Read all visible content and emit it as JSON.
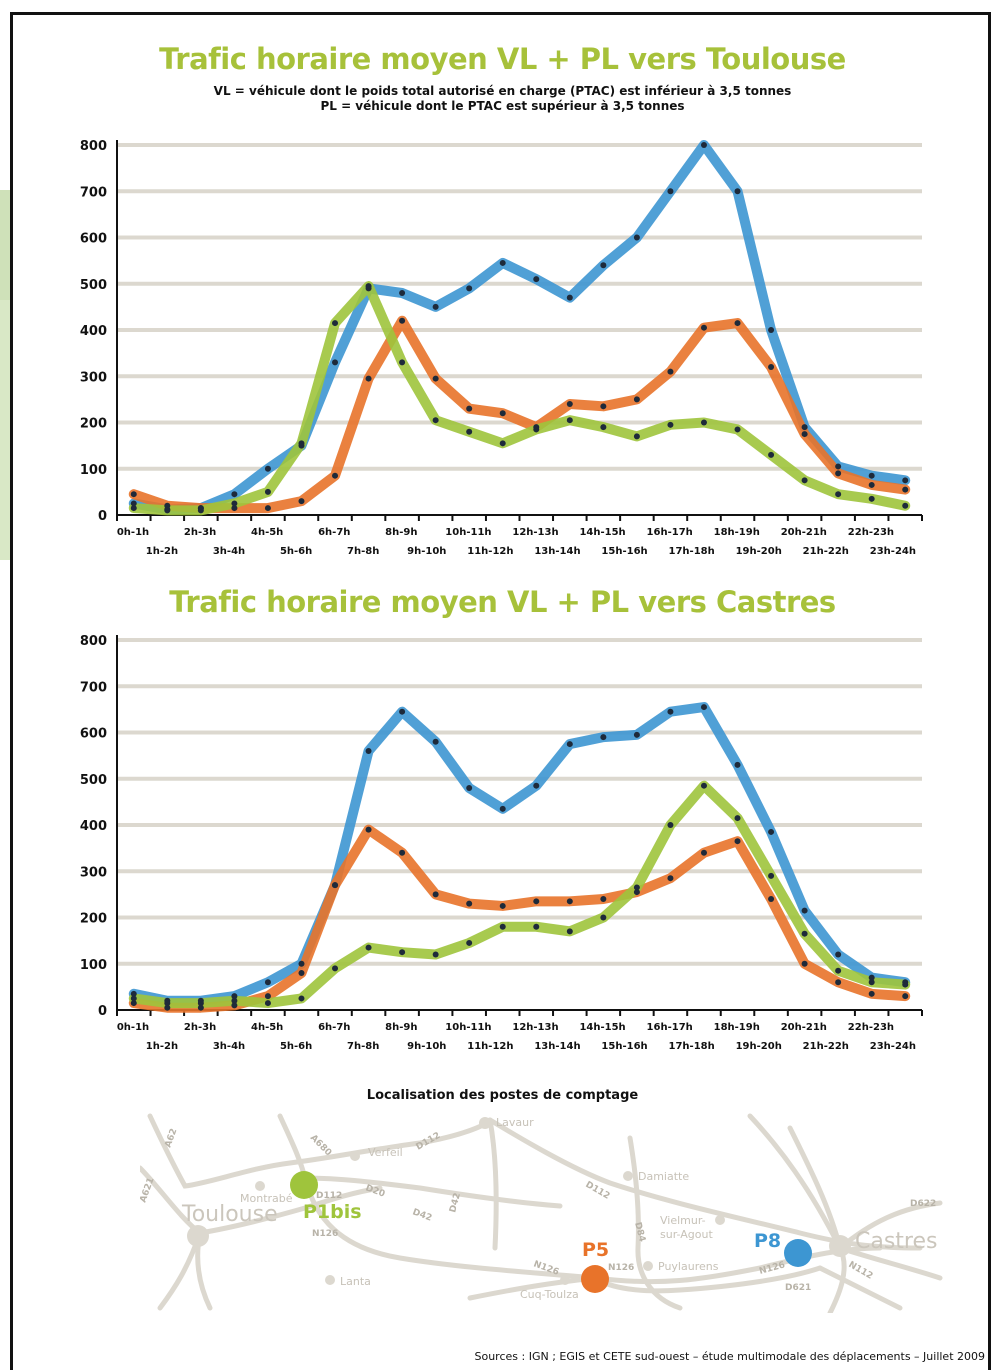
{
  "chart_data": [
    {
      "type": "line",
      "title": "Trafic horaire moyen VL + PL vers Toulouse",
      "subtitle": [
        "VL = véhicule dont le poids total autorisé en charge (PTAC) est inférieur à 3,5 tonnes",
        "PL = véhicule dont le PTAC est supérieur à 3,5 tonnes"
      ],
      "ylim": [
        0,
        800
      ],
      "yticks": [
        "0",
        "100",
        "200",
        "300",
        "400",
        "500",
        "600",
        "700",
        "800"
      ],
      "categories": [
        "0h-1h",
        "1h-2h",
        "2h-3h",
        "3h-4h",
        "4h-5h",
        "5h-6h",
        "6h-7h",
        "7h-8h",
        "8h-9h",
        "9h-10h",
        "10h-11h",
        "11h-12h",
        "12h-13h",
        "13h-14h",
        "14h-15h",
        "15h-16h",
        "16h-17h",
        "17h-18h",
        "18h-19h",
        "19h-20h",
        "20h-21h",
        "21h-22h",
        "22h-23h",
        "23h-24h"
      ],
      "grid": true,
      "series": [
        {
          "color": "#3d96d2",
          "values": [
            25,
            12,
            15,
            45,
            100,
            150,
            330,
            490,
            480,
            450,
            490,
            545,
            510,
            470,
            540,
            600,
            700,
            800,
            700,
            400,
            190,
            105,
            85,
            75
          ]
        },
        {
          "color": "#e8732a",
          "values": [
            45,
            20,
            15,
            15,
            15,
            30,
            85,
            295,
            420,
            295,
            230,
            220,
            190,
            240,
            235,
            250,
            310,
            405,
            415,
            320,
            175,
            90,
            65,
            55
          ]
        },
        {
          "color": "#9fc43c",
          "values": [
            15,
            10,
            10,
            25,
            50,
            155,
            415,
            495,
            330,
            205,
            180,
            155,
            185,
            205,
            190,
            170,
            195,
            200,
            185,
            130,
            75,
            45,
            35,
            20
          ]
        }
      ]
    },
    {
      "type": "line",
      "title": "Trafic horaire moyen VL + PL vers Castres",
      "ylim": [
        0,
        800
      ],
      "yticks": [
        "0",
        "100",
        "200",
        "300",
        "400",
        "500",
        "600",
        "700",
        "800"
      ],
      "categories": [
        "0h-1h",
        "1h-2h",
        "2h-3h",
        "3h-4h",
        "4h-5h",
        "5h-6h",
        "6h-7h",
        "7h-8h",
        "8h-9h",
        "9h-10h",
        "10h-11h",
        "11h-12h",
        "12h-13h",
        "13h-14h",
        "14h-15h",
        "15h-16h",
        "16h-17h",
        "17h-18h",
        "18h-19h",
        "19h-20h",
        "20h-21h",
        "21h-22h",
        "22h-23h",
        "23h-24h"
      ],
      "grid": true,
      "series": [
        {
          "color": "#3d96d2",
          "values": [
            35,
            20,
            20,
            30,
            60,
            100,
            270,
            560,
            645,
            580,
            480,
            435,
            485,
            575,
            590,
            595,
            645,
            655,
            530,
            385,
            215,
            120,
            70,
            60
          ]
        },
        {
          "color": "#e8732a",
          "values": [
            15,
            5,
            5,
            10,
            30,
            80,
            270,
            390,
            340,
            250,
            230,
            225,
            235,
            235,
            240,
            255,
            285,
            340,
            365,
            240,
            100,
            60,
            35,
            30
          ]
        },
        {
          "color": "#9fc43c",
          "values": [
            25,
            15,
            15,
            20,
            15,
            25,
            90,
            135,
            125,
            120,
            145,
            180,
            180,
            170,
            200,
            265,
            400,
            485,
            415,
            290,
            165,
            85,
            60,
            55
          ]
        }
      ]
    }
  ],
  "map": {
    "title": "Localisation des postes de comptage",
    "stations": [
      {
        "label": "P1bis",
        "color": "#9fc43c"
      },
      {
        "label": "P5",
        "color": "#e8732a"
      },
      {
        "label": "P8",
        "color": "#3d96d2"
      }
    ],
    "places": {
      "toulouse": "Toulouse",
      "castres": "Castres",
      "lavaur": "Lavaur",
      "verfeil": "Verfeil",
      "montrabe": "Montrabé",
      "damiatte": "Damiatte",
      "vielmur": "Vielmur-",
      "vielmur2": "sur-Agout",
      "puylaurens": "Puylaurens",
      "lanta": "Lanta",
      "cuq": "Cuq-Toulza"
    },
    "roads": {
      "a62": "A62",
      "a621": "A621",
      "a680": "A680",
      "d112a": "D112",
      "d112b": "D112",
      "d112c": "D112",
      "d20": "D20",
      "d42a": "D42",
      "d42b": "D42",
      "n126a": "N126",
      "n126b": "N126",
      "n126c": "N126",
      "n126d": "N126",
      "d84": "D84",
      "d622": "D622",
      "d621": "D621",
      "n112": "N112"
    }
  },
  "sources": "Sources : IGN ; EGIS et CETE sud-ouest – étude multimodale des déplacements – Juillet 2009"
}
